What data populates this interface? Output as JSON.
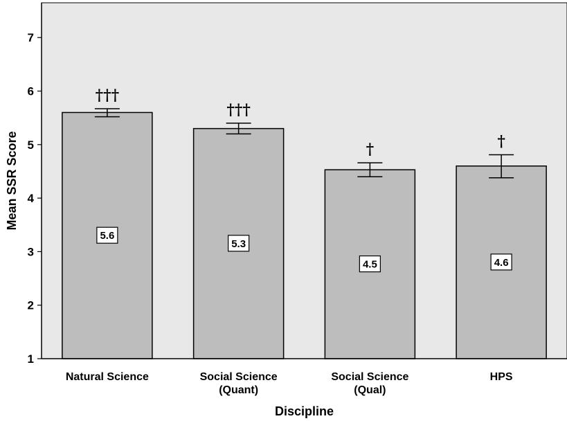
{
  "chart_data": {
    "type": "bar",
    "categories": [
      [
        "Natural Science"
      ],
      [
        "Social Science",
        "(Quant)"
      ],
      [
        "Social Science",
        "(Qual)"
      ],
      [
        "HPS"
      ]
    ],
    "values": [
      5.6,
      5.3,
      4.53,
      4.6
    ],
    "error_bars": [
      {
        "low": 5.52,
        "high": 5.67
      },
      {
        "low": 5.2,
        "high": 5.4
      },
      {
        "low": 4.4,
        "high": 4.66
      },
      {
        "low": 4.38,
        "high": 4.81
      }
    ],
    "data_labels": [
      "5.6",
      "5.3",
      "4.5",
      "4.6"
    ],
    "significance_markers": [
      "†††",
      "†††",
      "†",
      "†"
    ],
    "xlabel": "Discipline",
    "ylabel": "Mean SSR Score",
    "ylim": [
      1,
      7.65
    ],
    "yticks": [
      "1",
      "2",
      "3",
      "4",
      "5",
      "6",
      "7"
    ],
    "grid": false,
    "colors": {
      "plot_background": "#e8e8e8",
      "bar_fill": "#bdbdbd",
      "bar_stroke": "#000000",
      "label_box": "#ffffff"
    }
  }
}
